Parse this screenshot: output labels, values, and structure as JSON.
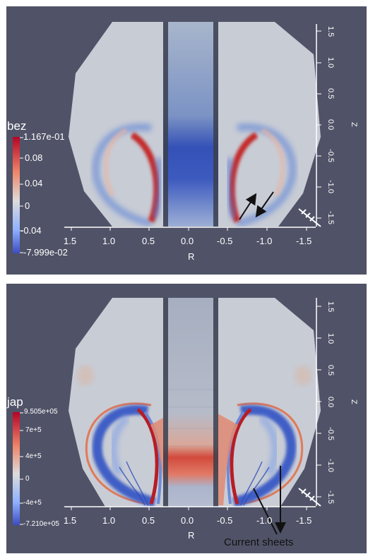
{
  "top_panel": {
    "variable": "bez",
    "colorbar": {
      "max": "1.167e-01",
      "ticks": [
        "0.08",
        "0.04",
        "0",
        "-0.04"
      ],
      "min": "-7.999e-02"
    },
    "r_ticks": [
      "1.5",
      "1.0",
      "0.5",
      "0.0",
      "-0.5",
      "-1.0",
      "-1.5"
    ],
    "z_ticks": [
      "1.5",
      "1.0",
      "0.5",
      "0.0",
      "-0.5",
      "-1.0",
      "-1.5"
    ],
    "r_label": "R",
    "z_label": "Z"
  },
  "bottom_panel": {
    "variable": "jap",
    "colorbar": {
      "max": "9.505e+05",
      "ticks": [
        "7e+5",
        "4e+5",
        "0",
        "-4e+5"
      ],
      "min": "-7.210e+05"
    },
    "r_ticks": [
      "1.5",
      "1.0",
      "0.5",
      "0.0",
      "-0.5",
      "-1.0",
      "-1.5"
    ],
    "z_ticks": [
      "1.5",
      "1.0",
      "0.5",
      "0.0",
      "-0.5",
      "-1.0",
      "-1.5"
    ],
    "r_label": "R",
    "z_label": "Z",
    "annotation": "Current sheets"
  },
  "colors": {
    "background": "#505367",
    "field": "#c9ccd4",
    "positive": "#c0282a",
    "negative": "#3a5fcd"
  }
}
